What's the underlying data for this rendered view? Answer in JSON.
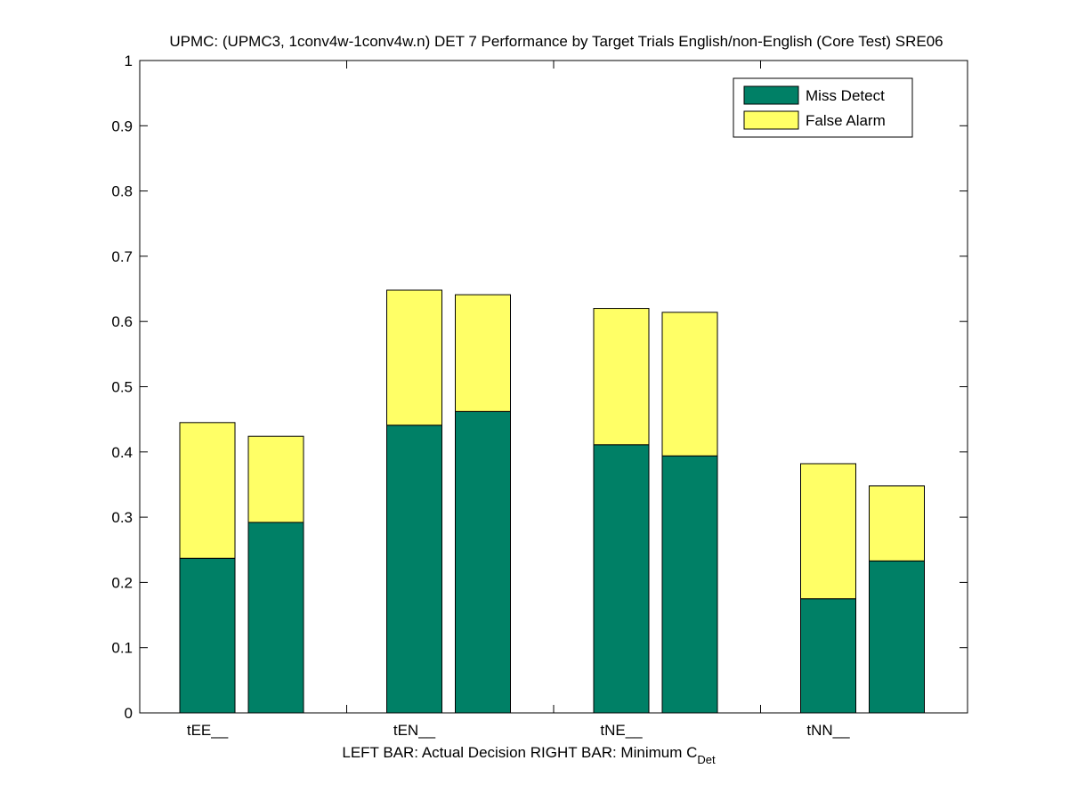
{
  "chart_data": {
    "type": "bar",
    "stacked": true,
    "title": "UPMC: (UPMC3, 1conv4w-1conv4w.n) DET 7 Performance by Target Trials English/non-English (Core Test) SRE06",
    "xlabel": {
      "left": "LEFT BAR: Actual Decision",
      "right_main": "RIGHT BAR: Minimum C",
      "right_sub": "Det"
    },
    "ylabel": "",
    "ylim": [
      0,
      1
    ],
    "yticks": [
      "0",
      "0.1",
      "0.2",
      "0.3",
      "0.4",
      "0.5",
      "0.6",
      "0.7",
      "0.8",
      "0.9",
      "1"
    ],
    "categories": [
      "tEE__",
      "tEN__",
      "tNE__",
      "tNN__"
    ],
    "bar_roles": [
      "Actual Decision",
      "Minimum C_Det"
    ],
    "series": [
      {
        "name": "Miss Detect",
        "color": "#008066",
        "actual": [
          0.237,
          0.441,
          0.411,
          0.175
        ],
        "minimum": [
          0.292,
          0.462,
          0.394,
          0.233
        ]
      },
      {
        "name": "False Alarm",
        "color": "#ffff66",
        "actual": [
          0.208,
          0.207,
          0.209,
          0.207
        ],
        "minimum": [
          0.132,
          0.179,
          0.22,
          0.115
        ]
      }
    ],
    "legend_position": "top-right",
    "grid": false
  }
}
